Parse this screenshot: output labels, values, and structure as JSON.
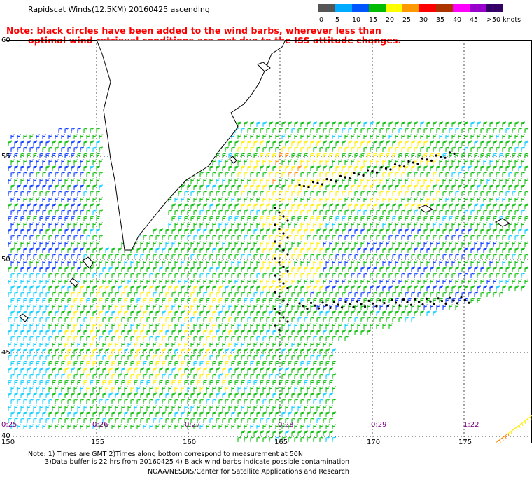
{
  "title": "Rapidscat Winds(12.5KM) 20160425 ascending",
  "legend": {
    "ticks": [
      "0",
      "5",
      "10",
      "15",
      "20",
      "25",
      "30",
      "35",
      "40",
      "45",
      ">50 knots"
    ],
    "colors": [
      "#555555",
      "#00aaff",
      "#0055ff",
      "#00bb00",
      "#ffff00",
      "#ff9900",
      "#ff0000",
      "#aa3300",
      "#ff00ff",
      "#9900cc",
      "#330066"
    ]
  },
  "note_red": {
    "line1": "Note: black circles have been added to the wind barbs, wherever less than",
    "line2": "optimal wind retrieval conditions are met due to the ISS attitude changes."
  },
  "lat_labels": [
    "60",
    "55",
    "50",
    "45",
    "40"
  ],
  "lon_labels": [
    "150",
    "155",
    "160",
    "165",
    "170",
    "175"
  ],
  "time_labels": [
    "0:25",
    "0:26",
    "0:27",
    "0:28",
    "0:29",
    "1:22"
  ],
  "footer": {
    "line1": "Note: 1) Times are GMT 2)Times along bottom correspond to measurement at 50N",
    "line2": "3)Data buffer is 22 hrs from 20160425 4) Black wind barbs indicate possible contamination",
    "line3": "NOAA/NESDIS/Center for Satellite Applications and Research"
  },
  "map": {
    "colors": {
      "speed_5_10": "#00ccff",
      "speed_10_15": "#0033ff",
      "speed_15_20": "#00bb00",
      "speed_20_25": "#ffee00",
      "speed_25_30": "#ff8800",
      "land_outline": "#000000",
      "grid": "#000000"
    }
  }
}
